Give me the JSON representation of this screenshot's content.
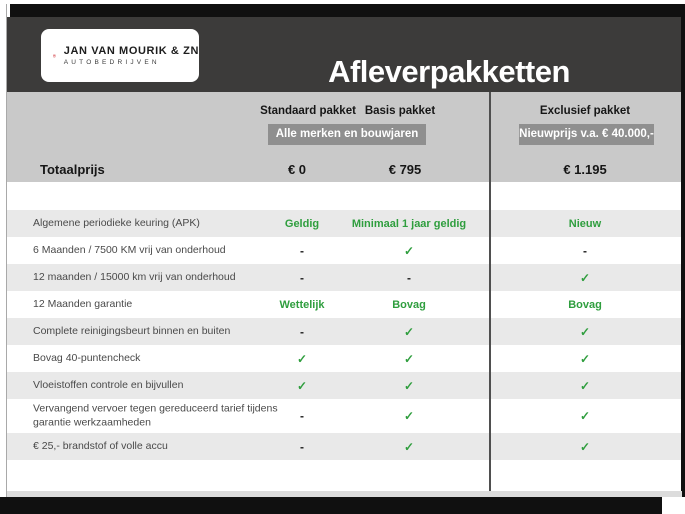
{
  "brand": {
    "name": "JAN VAN MOURIK & ZN",
    "subtitle": "AUTOBEDRIJVEN",
    "logo_letter": "M"
  },
  "title": "Afleverpakketten",
  "pricing": {
    "total_label": "Totaalprijs",
    "columns": [
      {
        "name": "Standaard pakket",
        "price": "€ 0"
      },
      {
        "name": "Basis pakket",
        "price": "€ 795"
      },
      {
        "name": "Exclusief pakket",
        "price": "€ 1.195"
      }
    ],
    "badge_left": "Alle merken en bouwjaren",
    "badge_right": "Nieuwprijs v.a. € 40.000,-"
  },
  "rows": [
    {
      "label": "Algemene periodieke keuring (APK)",
      "values": [
        "Geldig",
        "Minimaal 1 jaar geldig",
        "Nieuw"
      ]
    },
    {
      "label": "6 Maanden / 7500 KM vrij van onderhoud",
      "values": [
        "-",
        "check",
        "-"
      ]
    },
    {
      "label": "12 maanden / 15000 km vrij van onderhoud",
      "values": [
        "-",
        "-",
        "check"
      ]
    },
    {
      "label": "12 Maanden  garantie",
      "values": [
        "Wettelijk",
        "Bovag",
        "Bovag"
      ]
    },
    {
      "label": "Complete reinigingsbeurt binnen en buiten",
      "values": [
        "-",
        "check",
        "check"
      ]
    },
    {
      "label": "Bovag 40-puntencheck",
      "values": [
        "check",
        "check",
        "check"
      ]
    },
    {
      "label": "Vloeistoffen controle en bijvullen",
      "values": [
        "check",
        "check",
        "check"
      ]
    },
    {
      "label": "Vervangend vervoer tegen gereduceerd tarief tijdens garantie werkzaamheden",
      "values": [
        "-",
        "check",
        "check"
      ]
    },
    {
      "label": "€ 25,- brandstof of  volle accu",
      "values": [
        "-",
        "check",
        "check"
      ]
    }
  ],
  "icons": {
    "check": "✓"
  },
  "colors": {
    "green": "#2f9e3e",
    "header_dark": "#3c3b3a",
    "band_gray": "#c9c9c9",
    "badge_gray": "#8f8f8f",
    "stripe_gray": "#e9e9e9",
    "bar_black": "#101010",
    "logo_red": "#cc2229"
  }
}
